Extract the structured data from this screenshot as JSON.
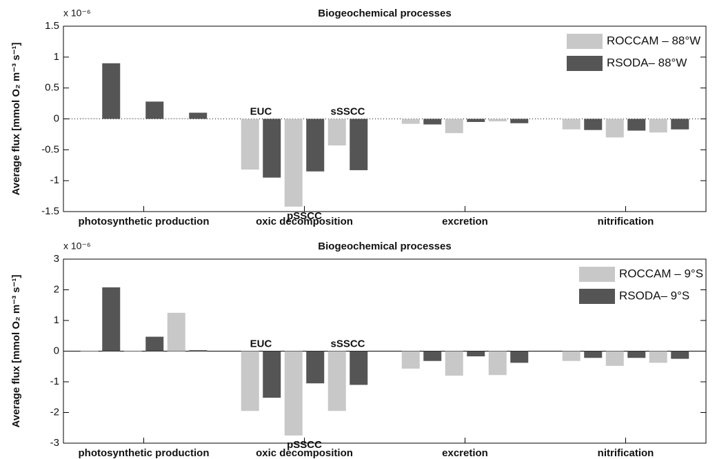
{
  "chart_data": [
    {
      "type": "grouped-bar",
      "title": "Biogeochemical processes",
      "ylabel": "Average flux [mmol O₂ m⁻³ s⁻¹]",
      "multiplier": "x 10⁻⁶",
      "categories": [
        "photosynthetic production",
        "oxic decomposition",
        "excretion",
        "nitrification"
      ],
      "annotations": [
        "EUC",
        "pSSCC",
        "sSSCC"
      ],
      "series": [
        {
          "name": "ROCCAM – 88°W",
          "color": "#c8c8c8",
          "values": [
            [
              0.01,
              0.01,
              0.01
            ],
            [
              -0.82,
              -1.42,
              -0.43
            ],
            [
              -0.08,
              -0.23,
              -0.04
            ],
            [
              -0.17,
              -0.3,
              -0.22
            ]
          ]
        },
        {
          "name": "RSODA– 88°W",
          "color": "#555555",
          "values": [
            [
              0.9,
              0.28,
              0.1
            ],
            [
              -0.95,
              -0.85,
              -0.83
            ],
            [
              -0.09,
              -0.05,
              -0.07
            ],
            [
              -0.18,
              -0.19,
              -0.17
            ]
          ]
        }
      ],
      "ylim": [
        -1.5,
        1.5
      ],
      "yticks": [
        -1.5,
        -1,
        -0.5,
        0,
        0.5,
        1,
        1.5
      ],
      "zero_line": "dotted",
      "legend": "upper right"
    },
    {
      "type": "grouped-bar",
      "title": "Biogeochemical processes",
      "ylabel": "Average flux [mmol O₂ m⁻³ s⁻¹]",
      "multiplier": "x 10⁻⁶",
      "categories": [
        "photosynthetic production",
        "oxic decomposition",
        "excretion",
        "nitrification"
      ],
      "annotations": [
        "EUC",
        "pSSCC",
        "sSSCC"
      ],
      "series": [
        {
          "name": "ROCCAM – 9°S",
          "color": "#c8c8c8",
          "values": [
            [
              0.01,
              0.01,
              1.25
            ],
            [
              -1.95,
              -2.75,
              -1.95
            ],
            [
              -0.57,
              -0.8,
              -0.78
            ],
            [
              -0.32,
              -0.48,
              -0.38
            ]
          ]
        },
        {
          "name": "RSODA– 9°S",
          "color": "#555555",
          "values": [
            [
              2.08,
              0.47,
              0.03
            ],
            [
              -1.52,
              -1.05,
              -1.1
            ],
            [
              -0.32,
              -0.17,
              -0.38
            ],
            [
              -0.22,
              -0.22,
              -0.25
            ]
          ]
        }
      ],
      "ylim": [
        -3,
        3
      ],
      "yticks": [
        -3,
        -2,
        -1,
        0,
        1,
        2,
        3
      ],
      "zero_line": "solid",
      "legend": "upper right"
    }
  ]
}
